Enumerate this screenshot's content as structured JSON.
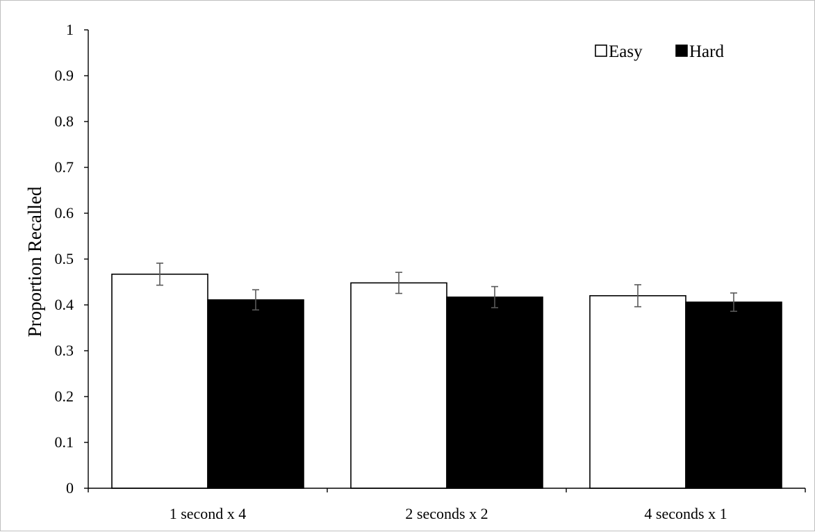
{
  "chart_data": {
    "type": "bar",
    "title": "",
    "xlabel": "",
    "ylabel": "Proportion Recalled",
    "categories": [
      "1 second x 4",
      "2 seconds x 2",
      "4 seconds x 1"
    ],
    "ylim": [
      0,
      1
    ],
    "yticks": [
      "0",
      "0.1",
      "0.2",
      "0.3",
      "0.4",
      "0.5",
      "0.6",
      "0.7",
      "0.8",
      "0.9",
      "1"
    ],
    "grid": false,
    "legend_position": "top-right",
    "error_bars": true,
    "series": [
      {
        "name": "Easy",
        "values": [
          0.467,
          0.448,
          0.42
        ],
        "errors": [
          0.024,
          0.023,
          0.024
        ],
        "fill": "#ffffff",
        "stroke": "#000000"
      },
      {
        "name": "Hard",
        "values": [
          0.411,
          0.417,
          0.406
        ],
        "errors": [
          0.022,
          0.023,
          0.02
        ],
        "fill": "#000000",
        "stroke": "#000000"
      }
    ],
    "colors": {
      "axis": "#000000",
      "error_bar": "#595959",
      "frame": "#bfbfbf"
    }
  }
}
